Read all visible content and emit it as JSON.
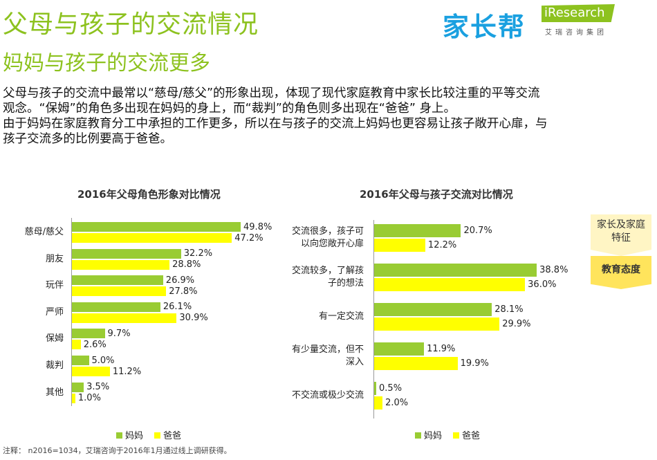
{
  "header": {
    "title": "父母与孩子的交流情况",
    "subtitle": "妈妈与孩子的交流更多",
    "paragraph_lines": [
      "父母与孩子的交流中最常以“慈母/慈父”的形象出现，体现了现代家庭教育中家长比较注重的平等交流",
      "观念。“保姆”的角色多出现在妈妈的身上，而“裁判”的角色则多出现在“爸爸” 身上。",
      "由于妈妈在家庭教育分工中承担的工作更多，所以在与孩子的交流上妈妈也更容易让孩子敞开心扉，与",
      "孩子交流多的比例要高于爸爸。"
    ]
  },
  "logos": {
    "jiazhangbang": "家长帮",
    "iresearch": "iResearch",
    "iresearch_cn": "艾瑞咨询集团"
  },
  "tags": [
    "家长及家庭特征",
    "教育态度"
  ],
  "note": "注释： n2016=1034，艾瑞咨询于2016年1月通过线上调研获得。",
  "colors": {
    "mom": "#99cc33",
    "dad": "#ffff00",
    "title": "#8dc21f",
    "tag_light": "#fff5c4",
    "tag_active": "#ffe45c"
  },
  "chart_data": [
    {
      "type": "bar",
      "orientation": "horizontal",
      "title": "2016年父母角色形象对比情况",
      "categories": [
        "慈母/慈父",
        "朋友",
        "玩伴",
        "严师",
        "保姆",
        "裁判",
        "其他"
      ],
      "series": [
        {
          "name": "妈妈",
          "values": [
            49.8,
            32.2,
            26.9,
            26.1,
            9.7,
            5.0,
            3.5
          ]
        },
        {
          "name": "爸爸",
          "values": [
            47.2,
            28.8,
            27.8,
            30.9,
            2.6,
            11.2,
            1.0
          ]
        }
      ],
      "unit": "%",
      "legend": "bottom"
    },
    {
      "type": "bar",
      "orientation": "horizontal",
      "title": "2016年父母与孩子交流对比情况",
      "categories": [
        [
          "交流很多，孩子可",
          "以向您敞开心扉"
        ],
        [
          "交流较多，了解孩",
          "子的想法"
        ],
        [
          "有一定交流"
        ],
        [
          "有少量交流，但不",
          "深入"
        ],
        [
          "不交流或极少交流"
        ]
      ],
      "series": [
        {
          "name": "妈妈",
          "values": [
            20.7,
            38.8,
            28.1,
            11.9,
            0.5
          ]
        },
        {
          "name": "爸爸",
          "values": [
            12.2,
            36.0,
            29.9,
            19.9,
            2.0
          ]
        }
      ],
      "unit": "%",
      "legend": "bottom"
    }
  ]
}
